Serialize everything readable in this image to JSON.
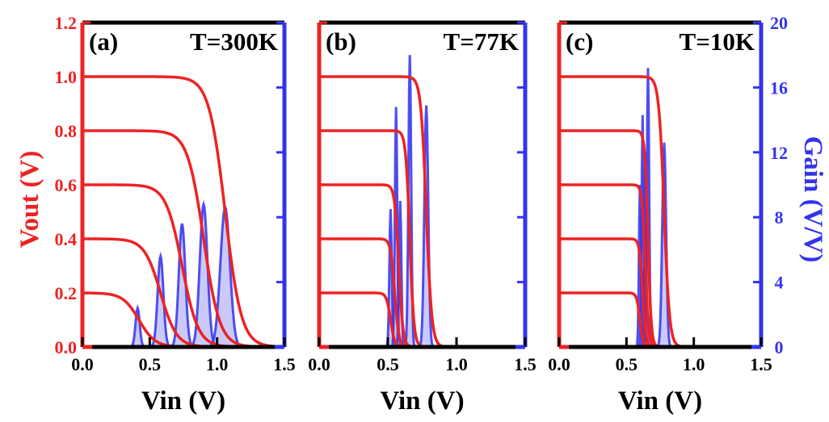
{
  "chart_data": {
    "type": "line",
    "x_label": "Vin (V)",
    "y_left_label": "Vout (V)",
    "y_right_label": "Gain (V/V)",
    "x_range": [
      0.0,
      1.5
    ],
    "y_left_range": [
      0.0,
      1.2
    ],
    "y_right_range": [
      0,
      20
    ],
    "x_ticks": [
      "0.0",
      "0.5",
      "1.0",
      "1.5"
    ],
    "y_left_ticks": [
      "0.0",
      "0.2",
      "0.4",
      "0.6",
      "0.8",
      "1.0",
      "1.2"
    ],
    "y_right_ticks": [
      "0",
      "4",
      "8",
      "12",
      "16",
      "20"
    ],
    "colors": {
      "vout": "#ee2222",
      "gain": "#3333ee",
      "gain_fill": "#8a8af0",
      "frame": "#000000"
    },
    "grid": false,
    "panels": [
      {
        "label": "(a)",
        "temperature": "T=300K",
        "vout_curves": [
          {
            "vdd": 0.2,
            "switch_v": 0.42,
            "width": 0.06
          },
          {
            "vdd": 0.4,
            "switch_v": 0.58,
            "width": 0.06
          },
          {
            "vdd": 0.6,
            "switch_v": 0.74,
            "width": 0.06
          },
          {
            "vdd": 0.8,
            "switch_v": 0.9,
            "width": 0.06
          },
          {
            "vdd": 1.0,
            "switch_v": 1.06,
            "width": 0.06
          }
        ],
        "gain_peaks": [
          {
            "x": 0.41,
            "peak": 2.4,
            "width": 0.022
          },
          {
            "x": 0.58,
            "peak": 5.6,
            "width": 0.03
          },
          {
            "x": 0.74,
            "peak": 7.6,
            "width": 0.034
          },
          {
            "x": 0.9,
            "peak": 8.8,
            "width": 0.04
          },
          {
            "x": 1.06,
            "peak": 8.6,
            "width": 0.05
          }
        ]
      },
      {
        "label": "(b)",
        "temperature": "T=77K",
        "vout_curves": [
          {
            "vdd": 0.2,
            "switch_v": 0.52,
            "width": 0.015
          },
          {
            "vdd": 0.4,
            "switch_v": 0.55,
            "width": 0.015
          },
          {
            "vdd": 0.6,
            "switch_v": 0.58,
            "width": 0.015
          },
          {
            "vdd": 0.8,
            "switch_v": 0.66,
            "width": 0.015
          },
          {
            "vdd": 1.0,
            "switch_v": 0.78,
            "width": 0.02
          }
        ],
        "gain_peaks": [
          {
            "x": 0.52,
            "peak": 8.5,
            "width": 0.012
          },
          {
            "x": 0.56,
            "peak": 14.8,
            "width": 0.012
          },
          {
            "x": 0.59,
            "peak": 9.0,
            "width": 0.012
          },
          {
            "x": 0.66,
            "peak": 18.0,
            "width": 0.014
          },
          {
            "x": 0.78,
            "peak": 14.9,
            "width": 0.02
          }
        ]
      },
      {
        "label": "(c)",
        "temperature": "T=10K",
        "vout_curves": [
          {
            "vdd": 0.2,
            "switch_v": 0.6,
            "width": 0.012
          },
          {
            "vdd": 0.4,
            "switch_v": 0.62,
            "width": 0.012
          },
          {
            "vdd": 0.6,
            "switch_v": 0.64,
            "width": 0.012
          },
          {
            "vdd": 0.8,
            "switch_v": 0.66,
            "width": 0.012
          },
          {
            "vdd": 1.0,
            "switch_v": 0.78,
            "width": 0.02
          }
        ],
        "gain_peaks": [
          {
            "x": 0.6,
            "peak": 10.0,
            "width": 0.01
          },
          {
            "x": 0.62,
            "peak": 14.3,
            "width": 0.01
          },
          {
            "x": 0.64,
            "peak": 12.0,
            "width": 0.01
          },
          {
            "x": 0.66,
            "peak": 17.2,
            "width": 0.012
          },
          {
            "x": 0.78,
            "peak": 12.6,
            "width": 0.02
          }
        ]
      }
    ]
  }
}
